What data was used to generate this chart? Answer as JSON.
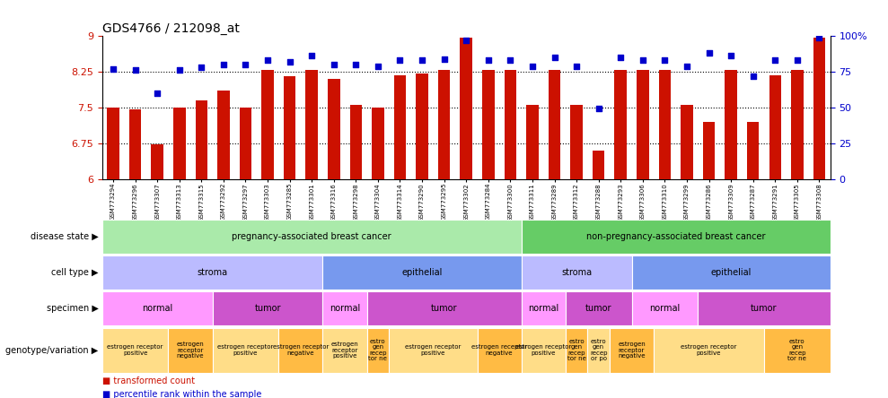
{
  "title": "GDS4766 / 212098_at",
  "samples": [
    "GSM773294",
    "GSM773296",
    "GSM773307",
    "GSM773313",
    "GSM773315",
    "GSM773292",
    "GSM773297",
    "GSM773303",
    "GSM773285",
    "GSM773301",
    "GSM773316",
    "GSM773298",
    "GSM773304",
    "GSM773314",
    "GSM773290",
    "GSM773295",
    "GSM773302",
    "GSM773284",
    "GSM773300",
    "GSM773311",
    "GSM773289",
    "GSM773312",
    "GSM773288",
    "GSM773293",
    "GSM773306",
    "GSM773310",
    "GSM773299",
    "GSM773286",
    "GSM773309",
    "GSM773287",
    "GSM773291",
    "GSM773305",
    "GSM773308"
  ],
  "bar_values": [
    7.5,
    7.46,
    6.73,
    7.5,
    7.65,
    7.85,
    7.5,
    8.28,
    8.15,
    8.28,
    8.1,
    7.55,
    7.5,
    8.18,
    8.22,
    8.28,
    8.97,
    8.28,
    8.28,
    7.55,
    8.28,
    7.55,
    6.6,
    8.28,
    8.28,
    8.28,
    7.55,
    7.2,
    8.28,
    7.2,
    8.18,
    8.28,
    8.97
  ],
  "dot_values_pct": [
    77,
    76,
    60,
    76,
    78,
    80,
    80,
    83,
    82,
    86,
    80,
    80,
    79,
    83,
    83,
    84,
    97,
    83,
    83,
    79,
    85,
    79,
    49,
    85,
    83,
    83,
    79,
    88,
    86,
    72,
    83,
    83,
    99
  ],
  "ylim_left": [
    6.0,
    9.0
  ],
  "ylim_right": [
    0,
    100
  ],
  "yticks_left": [
    6,
    6.75,
    7.5,
    8.25,
    9
  ],
  "yticks_right": [
    0,
    25,
    50,
    75,
    100
  ],
  "bar_color": "#cc1100",
  "dot_color": "#0000cc",
  "hline_y": [
    6.75,
    7.5,
    8.25
  ],
  "disease_state_groups": [
    {
      "label": "pregnancy-associated breast cancer",
      "start": 0,
      "end": 19,
      "color": "#aaeaaa"
    },
    {
      "label": "non-pregnancy-associated breast cancer",
      "start": 19,
      "end": 33,
      "color": "#66cc66"
    }
  ],
  "cell_type_groups": [
    {
      "label": "stroma",
      "start": 0,
      "end": 10,
      "color": "#bbbbff"
    },
    {
      "label": "epithelial",
      "start": 10,
      "end": 19,
      "color": "#7799ee"
    },
    {
      "label": "stroma",
      "start": 19,
      "end": 24,
      "color": "#bbbbff"
    },
    {
      "label": "epithelial",
      "start": 24,
      "end": 33,
      "color": "#7799ee"
    }
  ],
  "specimen_groups": [
    {
      "label": "normal",
      "start": 0,
      "end": 5,
      "color": "#ff99ff"
    },
    {
      "label": "tumor",
      "start": 5,
      "end": 10,
      "color": "#cc55cc"
    },
    {
      "label": "normal",
      "start": 10,
      "end": 12,
      "color": "#ff99ff"
    },
    {
      "label": "tumor",
      "start": 12,
      "end": 19,
      "color": "#cc55cc"
    },
    {
      "label": "normal",
      "start": 19,
      "end": 21,
      "color": "#ff99ff"
    },
    {
      "label": "tumor",
      "start": 21,
      "end": 24,
      "color": "#cc55cc"
    },
    {
      "label": "normal",
      "start": 24,
      "end": 27,
      "color": "#ff99ff"
    },
    {
      "label": "tumor",
      "start": 27,
      "end": 33,
      "color": "#cc55cc"
    }
  ],
  "genotype_groups": [
    {
      "label": "estrogen receptor\npositive",
      "start": 0,
      "end": 3,
      "color": "#ffdd88"
    },
    {
      "label": "estrogen\nreceptor\nnegative",
      "start": 3,
      "end": 5,
      "color": "#ffbb44"
    },
    {
      "label": "estrogen receptor\npositive",
      "start": 5,
      "end": 8,
      "color": "#ffdd88"
    },
    {
      "label": "estrogen receptor\nnegative",
      "start": 8,
      "end": 10,
      "color": "#ffbb44"
    },
    {
      "label": "estrogen\nreceptor\npositive",
      "start": 10,
      "end": 12,
      "color": "#ffdd88"
    },
    {
      "label": "estro\ngen\nrecep\ntor ne",
      "start": 12,
      "end": 13,
      "color": "#ffbb44"
    },
    {
      "label": "estrogen receptor\npositive",
      "start": 13,
      "end": 17,
      "color": "#ffdd88"
    },
    {
      "label": "estrogen receptor\nnegative",
      "start": 17,
      "end": 19,
      "color": "#ffbb44"
    },
    {
      "label": "estrogen receptor\npositive",
      "start": 19,
      "end": 21,
      "color": "#ffdd88"
    },
    {
      "label": "estro\ngen\nrecep\ntor ne",
      "start": 21,
      "end": 22,
      "color": "#ffbb44"
    },
    {
      "label": "estro\ngen\nrecep\nor po",
      "start": 22,
      "end": 23,
      "color": "#ffdd88"
    },
    {
      "label": "estrogen\nreceptor\nnegative",
      "start": 23,
      "end": 25,
      "color": "#ffbb44"
    },
    {
      "label": "estrogen receptor\npositive",
      "start": 25,
      "end": 30,
      "color": "#ffdd88"
    },
    {
      "label": "estro\ngen\nrecep\ntor ne",
      "start": 30,
      "end": 33,
      "color": "#ffbb44"
    }
  ],
  "row_labels": [
    "disease state",
    "cell type",
    "specimen",
    "genotype/variation"
  ],
  "legend_bar_label": "transformed count",
  "legend_dot_label": "percentile rank within the sample"
}
